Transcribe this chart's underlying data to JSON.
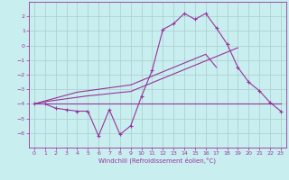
{
  "x": [
    0,
    1,
    2,
    3,
    4,
    5,
    6,
    7,
    8,
    9,
    10,
    11,
    12,
    13,
    14,
    15,
    16,
    17,
    18,
    19,
    20,
    21,
    22,
    23
  ],
  "line1": [
    -4.0,
    -4.0,
    -4.3,
    -4.4,
    -4.5,
    -4.5,
    -6.2,
    -4.4,
    -6.1,
    -5.5,
    -3.5,
    -1.7,
    1.1,
    1.5,
    2.2,
    1.8,
    2.2,
    1.2,
    0.1,
    -1.5,
    -2.5,
    -3.1,
    -3.9,
    -4.5
  ],
  "line2": [
    -4.0,
    -4.0,
    -4.0,
    -4.0,
    -4.0,
    -4.0,
    -4.0,
    -4.0,
    -4.0,
    -4.0,
    -4.0,
    -4.0,
    -4.0,
    -4.0,
    -4.0,
    -4.0,
    -4.0,
    -4.0,
    -4.0,
    -4.0,
    -4.0,
    -4.0,
    -4.0,
    -4.0
  ],
  "line3": [
    -4.0,
    -3.85,
    -3.75,
    -3.65,
    -3.55,
    -3.45,
    -3.38,
    -3.3,
    -3.22,
    -3.15,
    -2.85,
    -2.55,
    -2.25,
    -1.95,
    -1.65,
    -1.35,
    -1.05,
    -0.75,
    -0.45,
    -0.15,
    null,
    null,
    null,
    null
  ],
  "line4": [
    -4.0,
    -3.8,
    -3.6,
    -3.4,
    -3.2,
    -3.1,
    -3.0,
    -2.9,
    -2.8,
    -2.7,
    -2.4,
    -2.1,
    -1.8,
    -1.5,
    -1.2,
    -0.9,
    -0.6,
    -1.5,
    null,
    null,
    null,
    null,
    null,
    null
  ],
  "line_color": "#993399",
  "bg_color": "#c8eef0",
  "grid_color": "#aacccc",
  "xlabel": "Windchill (Refroidissement éolien,°C)",
  "ylim": [
    -7,
    3
  ],
  "xlim": [
    -0.5,
    23.5
  ],
  "yticks": [
    -6,
    -5,
    -4,
    -3,
    -2,
    -1,
    0,
    1,
    2
  ],
  "xticks": [
    0,
    1,
    2,
    3,
    4,
    5,
    6,
    7,
    8,
    9,
    10,
    11,
    12,
    13,
    14,
    15,
    16,
    17,
    18,
    19,
    20,
    21,
    22,
    23
  ]
}
